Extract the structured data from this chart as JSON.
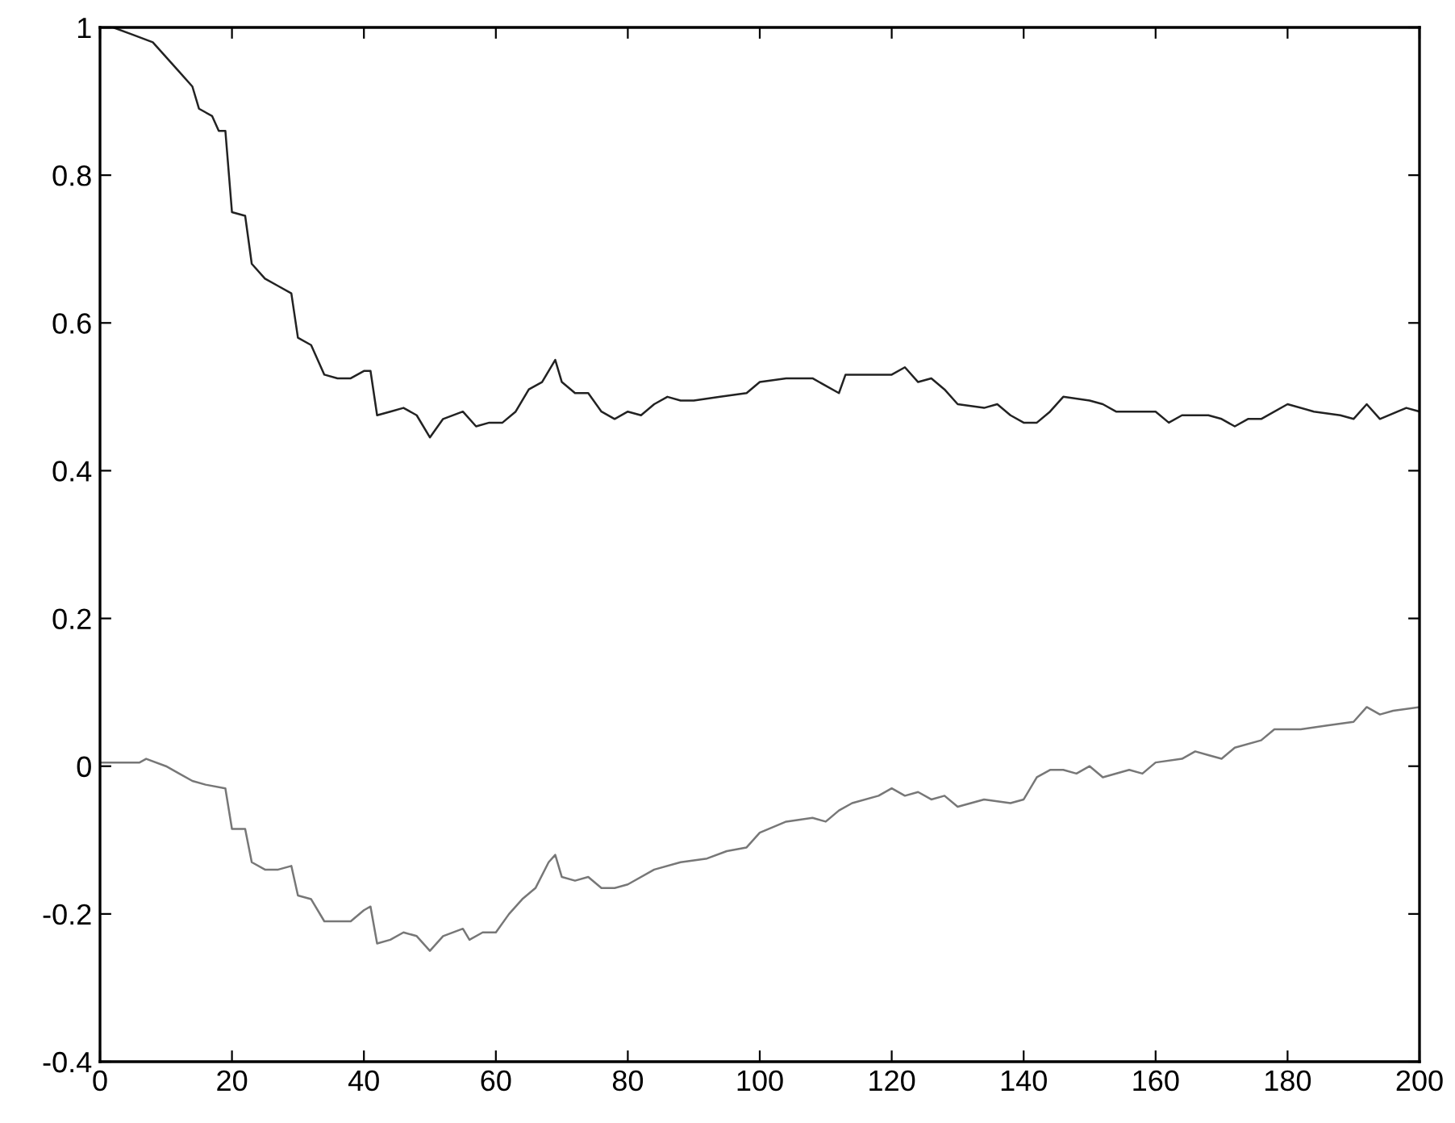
{
  "chart_data": {
    "type": "line",
    "xlim": [
      0,
      200
    ],
    "ylim": [
      -0.4,
      1
    ],
    "xticks": [
      0,
      20,
      40,
      60,
      80,
      100,
      120,
      140,
      160,
      180,
      200
    ],
    "yticks": [
      -0.4,
      -0.2,
      0,
      0.2,
      0.4,
      0.6,
      0.8,
      1
    ],
    "grid": false,
    "marker": "none",
    "line_style": "solid",
    "series": [
      {
        "color": "#222222",
        "x": [
          0,
          2,
          5,
          8,
          10,
          12,
          14,
          15,
          17,
          18,
          19,
          20,
          22,
          23,
          25,
          27,
          29,
          30,
          32,
          34,
          36,
          38,
          40,
          41,
          42,
          44,
          46,
          48,
          50,
          52,
          55,
          57,
          59,
          61,
          63,
          65,
          67,
          69,
          70,
          72,
          74,
          76,
          78,
          80,
          82,
          84,
          86,
          88,
          90,
          94,
          98,
          100,
          104,
          108,
          110,
          112,
          113,
          116,
          120,
          122,
          124,
          126,
          128,
          130,
          134,
          136,
          138,
          140,
          142,
          144,
          146,
          150,
          152,
          154,
          160,
          162,
          164,
          168,
          170,
          172,
          174,
          176,
          180,
          184,
          188,
          190,
          192,
          194,
          198,
          200
        ],
        "values": [
          1.0,
          1.0,
          0.99,
          0.98,
          0.96,
          0.94,
          0.92,
          0.89,
          0.88,
          0.86,
          0.86,
          0.75,
          0.745,
          0.68,
          0.66,
          0.65,
          0.64,
          0.58,
          0.57,
          0.53,
          0.525,
          0.525,
          0.535,
          0.535,
          0.475,
          0.48,
          0.485,
          0.475,
          0.445,
          0.47,
          0.48,
          0.46,
          0.465,
          0.465,
          0.48,
          0.51,
          0.52,
          0.55,
          0.52,
          0.505,
          0.505,
          0.48,
          0.47,
          0.48,
          0.475,
          0.49,
          0.5,
          0.495,
          0.495,
          0.5,
          0.505,
          0.52,
          0.525,
          0.525,
          0.515,
          0.505,
          0.53,
          0.53,
          0.53,
          0.54,
          0.52,
          0.525,
          0.51,
          0.49,
          0.485,
          0.49,
          0.475,
          0.465,
          0.465,
          0.48,
          0.5,
          0.495,
          0.49,
          0.48,
          0.48,
          0.465,
          0.475,
          0.475,
          0.47,
          0.46,
          0.47,
          0.47,
          0.49,
          0.48,
          0.475,
          0.47,
          0.49,
          0.47,
          0.485,
          0.48
        ]
      },
      {
        "color": "#777777",
        "x": [
          0,
          6,
          7,
          10,
          12,
          14,
          16,
          19,
          20,
          22,
          23,
          25,
          27,
          29,
          30,
          32,
          34,
          38,
          40,
          41,
          42,
          44,
          46,
          48,
          50,
          52,
          55,
          56,
          58,
          60,
          62,
          64,
          66,
          68,
          69,
          70,
          72,
          74,
          76,
          78,
          80,
          84,
          88,
          92,
          95,
          98,
          100,
          104,
          108,
          110,
          112,
          114,
          118,
          120,
          122,
          124,
          126,
          128,
          130,
          134,
          138,
          140,
          142,
          144,
          146,
          148,
          150,
          152,
          156,
          158,
          160,
          164,
          166,
          168,
          170,
          172,
          176,
          178,
          182,
          186,
          190,
          192,
          194,
          196,
          200
        ],
        "values": [
          0.005,
          0.005,
          0.01,
          0.0,
          -0.01,
          -0.02,
          -0.025,
          -0.03,
          -0.085,
          -0.085,
          -0.13,
          -0.14,
          -0.14,
          -0.135,
          -0.175,
          -0.18,
          -0.21,
          -0.21,
          -0.195,
          -0.19,
          -0.24,
          -0.235,
          -0.225,
          -0.23,
          -0.25,
          -0.23,
          -0.22,
          -0.235,
          -0.225,
          -0.225,
          -0.2,
          -0.18,
          -0.165,
          -0.13,
          -0.12,
          -0.15,
          -0.155,
          -0.15,
          -0.165,
          -0.165,
          -0.16,
          -0.14,
          -0.13,
          -0.125,
          -0.115,
          -0.11,
          -0.09,
          -0.075,
          -0.07,
          -0.075,
          -0.06,
          -0.05,
          -0.04,
          -0.03,
          -0.04,
          -0.035,
          -0.045,
          -0.04,
          -0.055,
          -0.045,
          -0.05,
          -0.045,
          -0.015,
          -0.005,
          -0.005,
          -0.01,
          0.0,
          -0.015,
          -0.005,
          -0.01,
          0.005,
          0.01,
          0.02,
          0.015,
          0.01,
          0.025,
          0.035,
          0.05,
          0.05,
          0.055,
          0.06,
          0.08,
          0.07,
          0.075,
          0.08
        ]
      }
    ]
  }
}
